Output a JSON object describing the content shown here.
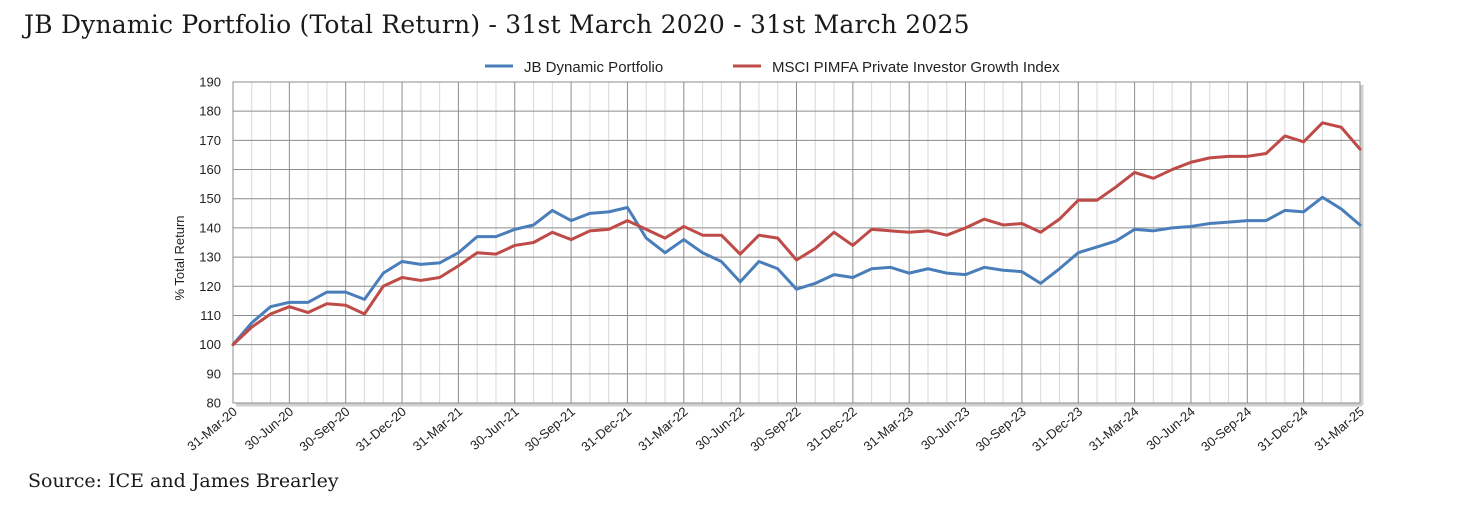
{
  "title": "JB Dynamic Portfolio (Total Return) - 31st March 2020 - 31st March 2025",
  "source": "Source: ICE and James Brearley",
  "colors": {
    "series1": "#4a7ebb",
    "series2": "#be4b48",
    "grid": "#8c8c8c",
    "minor_grid": "#d9d9d9",
    "plot_border": "#bfbfbf"
  },
  "chart_data": {
    "type": "line",
    "title": "JB Dynamic Portfolio (Total Return) - 31st March 2020 - 31st March 2025",
    "ylabel": "% Total Return",
    "xlabel": "",
    "ylim": [
      80,
      190
    ],
    "yticks": [
      80,
      90,
      100,
      110,
      120,
      130,
      140,
      150,
      160,
      170,
      180,
      190
    ],
    "grid": true,
    "legend_position": "top",
    "x_tick_labels": [
      "31-Mar-20",
      "30-Jun-20",
      "30-Sep-20",
      "31-Dec-20",
      "31-Mar-21",
      "30-Jun-21",
      "30-Sep-21",
      "31-Dec-21",
      "31-Mar-22",
      "30-Jun-22",
      "30-Sep-22",
      "31-Dec-22",
      "31-Mar-23",
      "30-Jun-23",
      "30-Sep-23",
      "31-Dec-23",
      "31-Mar-24",
      "30-Jun-24",
      "30-Sep-24",
      "31-Dec-24",
      "31-Mar-25"
    ],
    "series": [
      {
        "name": "JB Dynamic Portfolio",
        "values": [
          100,
          107.5,
          113,
          114.5,
          114.5,
          118,
          118,
          115.5,
          124.5,
          128.5,
          127.5,
          128,
          131.5,
          137,
          137,
          139.5,
          141,
          146,
          142.5,
          145,
          145.5,
          147,
          136.5,
          131.5,
          136,
          131.5,
          128.5,
          121.5,
          128.5,
          126,
          119,
          121,
          124,
          123,
          126,
          126.5,
          124.5,
          126,
          124.5,
          124,
          126.5,
          125.5,
          125,
          121,
          126,
          131.5,
          133.5,
          135.5,
          139.5,
          139,
          140,
          140.5,
          141.5,
          142,
          142.5,
          142.5,
          146,
          145.5,
          150.5,
          146.5,
          141
        ]
      },
      {
        "name": "MSCI PIMFA Private Investor Growth Index",
        "values": [
          100,
          106,
          110.5,
          113,
          111,
          114,
          113.5,
          110.5,
          120,
          123,
          122,
          123,
          127,
          131.5,
          131,
          134,
          135,
          138.5,
          136,
          139,
          139.5,
          142.5,
          139.5,
          136.5,
          140.5,
          137.5,
          137.5,
          131,
          137.5,
          136.5,
          129,
          133,
          138.5,
          134,
          139.5,
          139,
          138.5,
          139,
          137.5,
          140,
          143,
          141,
          141.5,
          138.5,
          143,
          149.5,
          149.5,
          154,
          159,
          157,
          160,
          162.5,
          164,
          164.5,
          164.5,
          165.5,
          171.5,
          169.5,
          176,
          174.5,
          167
        ]
      }
    ]
  }
}
